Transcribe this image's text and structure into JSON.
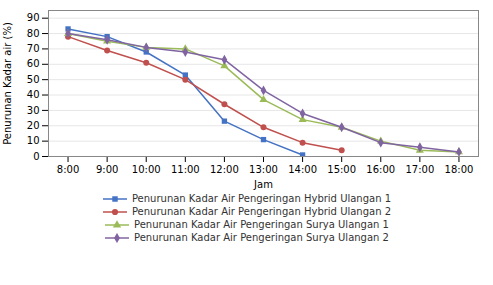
{
  "chart_data": {
    "type": "line",
    "x": [
      8,
      9,
      10,
      11,
      12,
      13,
      14,
      15,
      16,
      17,
      18
    ],
    "series": [
      {
        "name": "Penurunan Kadar Air Pengeringan Hybrid Ulangan 1",
        "color": "#4472C4",
        "marker": "square",
        "values": [
          83,
          78,
          68,
          53,
          23,
          11,
          1,
          null,
          null,
          null,
          null
        ]
      },
      {
        "name": "Penurunan Kadar Air Pengeringan Hybrid Ulangan 2",
        "color": "#C0504D",
        "marker": "circle",
        "values": [
          78,
          69,
          61,
          50,
          34,
          19,
          9,
          4,
          null,
          null,
          null
        ]
      },
      {
        "name": "Penurunan Kadar Air Pengeringan Surya Ulangan 1",
        "color": "#9BBB59",
        "marker": "triangle",
        "values": [
          80,
          75,
          71,
          70,
          59,
          37,
          24,
          19,
          10,
          4,
          3
        ]
      },
      {
        "name": "Penurunan Kadar Air Pengeringan Surya Ulangan 2",
        "color": "#8064A2",
        "marker": "diamond",
        "values": [
          80,
          76,
          71,
          68,
          63,
          43,
          28,
          19,
          9,
          6,
          3
        ]
      }
    ],
    "xlabel": "Jam",
    "ylabel": "Penurunan Kadar air (%)",
    "xlim": [
      7.5,
      18.5
    ],
    "xticks": [
      {
        "value": 8,
        "label": "8:00"
      },
      {
        "value": 9,
        "label": "9:00"
      },
      {
        "value": 10,
        "label": "10:00"
      },
      {
        "value": 11,
        "label": "11:00"
      },
      {
        "value": 12,
        "label": "12:00"
      },
      {
        "value": 13,
        "label": "13:00"
      },
      {
        "value": 14,
        "label": "14:00"
      },
      {
        "value": 15,
        "label": "15:00"
      },
      {
        "value": 16,
        "label": "16:00"
      },
      {
        "value": 17,
        "label": "17:00"
      },
      {
        "value": 18,
        "label": "18:00"
      }
    ],
    "ylim": [
      0,
      95
    ],
    "yticks": [
      0,
      10,
      20,
      30,
      40,
      50,
      60,
      70,
      80,
      90
    ],
    "grid": true,
    "legend": "bottom"
  }
}
